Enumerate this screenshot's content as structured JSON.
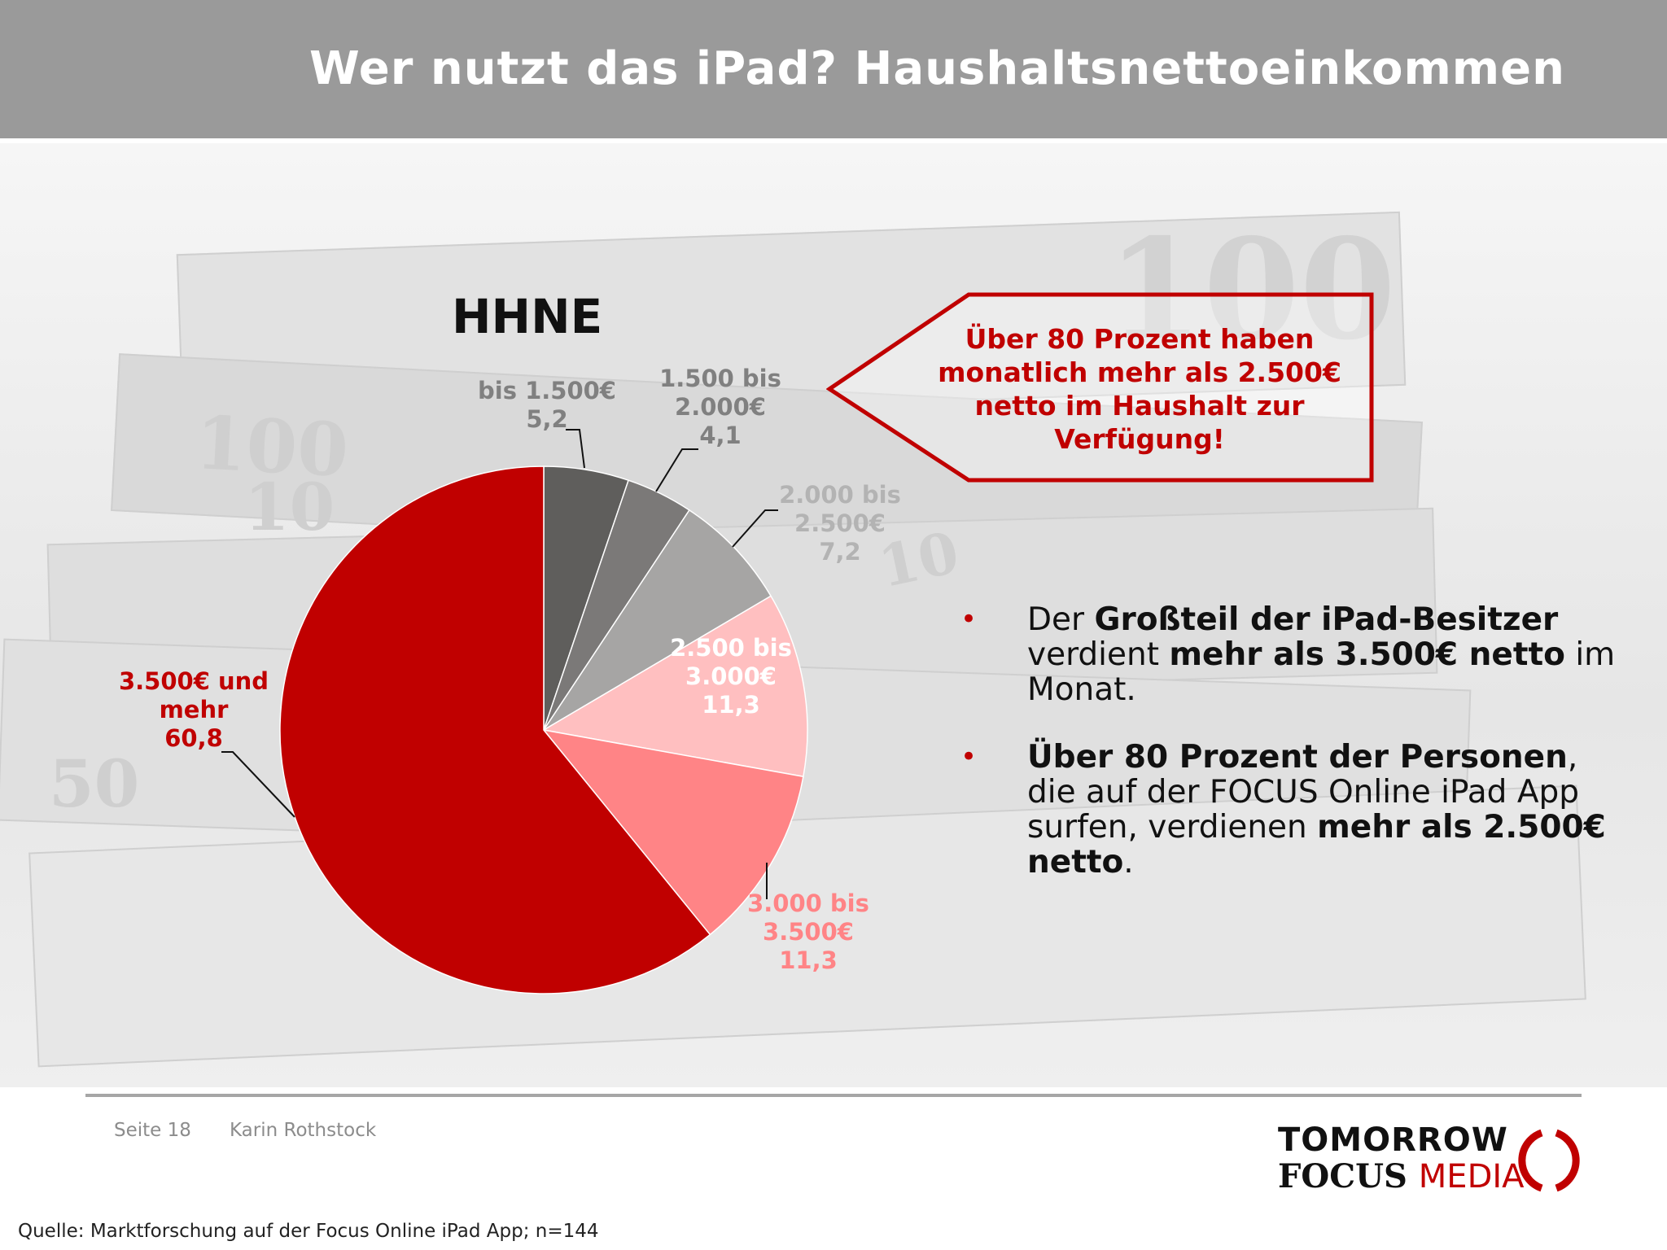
{
  "header": {
    "title": "Wer nutzt das iPad? Haushaltsnettoeinkommen"
  },
  "colors": {
    "accent": "#c00000",
    "header_bg": "#9a9a9a"
  },
  "chart_data": {
    "type": "pie",
    "title": "HHNE",
    "start_angle_deg": 0,
    "direction": "clockwise",
    "slices": [
      {
        "label_lines": [
          "bis 1.500€",
          "5,2"
        ],
        "value": 5.2,
        "color": "#5f5e5c",
        "label_color": "#808080"
      },
      {
        "label_lines": [
          "1.500 bis",
          "2.000€",
          "4,1"
        ],
        "value": 4.1,
        "color": "#7b7978",
        "label_color": "#808080"
      },
      {
        "label_lines": [
          "2.000 bis",
          "2.500€",
          "7,2"
        ],
        "value": 7.2,
        "color": "#a6a5a4",
        "label_color": "#b3b3b3"
      },
      {
        "label_lines": [
          "2.500 bis",
          "3.000€",
          "11,3"
        ],
        "value": 11.3,
        "color": "#ffbfc0",
        "label_color": "#ffffff"
      },
      {
        "label_lines": [
          "3.000 bis",
          "3.500€",
          "11,3"
        ],
        "value": 11.3,
        "color": "#ff8486",
        "label_color": "#ff8486"
      },
      {
        "label_lines": [
          "3.500€ und",
          "mehr",
          "60,8"
        ],
        "value": 60.8,
        "color": "#c00000",
        "label_color": "#c00000"
      }
    ]
  },
  "callout": {
    "text": "Über 80 Prozent haben monatlich mehr als 2.500€ netto im Haushalt zur Verfügung!"
  },
  "bullets": [
    {
      "parts": [
        {
          "text": "Der ",
          "bold": false
        },
        {
          "text": "Großteil der iPad-Besitzer",
          "bold": true
        },
        {
          "text": " verdient ",
          "bold": false
        },
        {
          "text": "mehr als 3.500€ netto",
          "bold": true
        },
        {
          "text": " im Monat.",
          "bold": false
        }
      ]
    },
    {
      "parts": [
        {
          "text": "Über 80 Prozent der Personen",
          "bold": true
        },
        {
          "text": ", die auf der FOCUS Online iPad App surfen, verdienen ",
          "bold": false
        },
        {
          "text": "mehr als 2.500€ netto",
          "bold": true
        },
        {
          "text": ".",
          "bold": false
        }
      ]
    }
  ],
  "footer": {
    "page": "Seite 18",
    "author": "Karin Rothstock",
    "source": "Quelle: Marktforschung auf der Focus Online iPad App; n=144"
  },
  "logo": {
    "line1": "TOMORROW",
    "line2a": "FOCUS",
    "line2b": "MEDIA"
  }
}
